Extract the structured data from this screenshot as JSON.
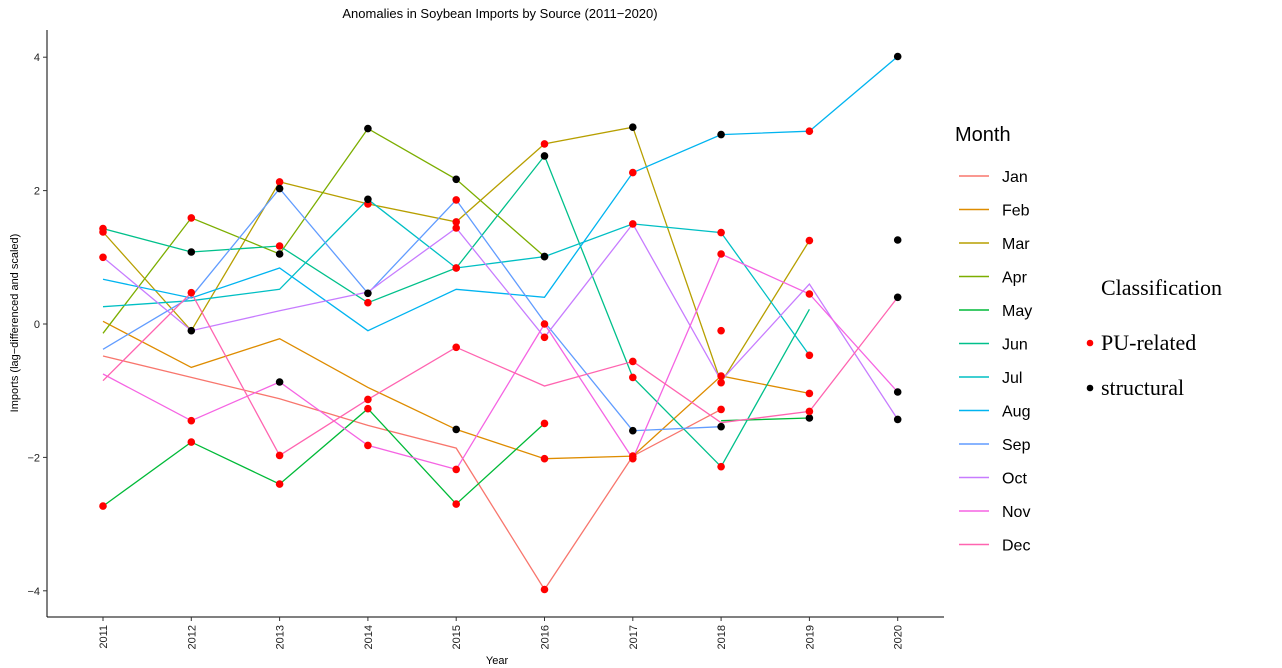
{
  "chart_data": {
    "type": "line",
    "title": "Anomalies in Soybean Imports by Source (2011−2020)",
    "xlabel": "Year",
    "ylabel": "Imports (lag−differenced and scaled)",
    "x": [
      2011,
      2012,
      2013,
      2014,
      2015,
      2016,
      2017,
      2018,
      2019,
      2020
    ],
    "x_tick_labels": [
      "2011",
      "2012",
      "2013",
      "2014",
      "2015",
      "2016",
      "2017",
      "2018",
      "2019",
      "2020"
    ],
    "y_ticks": [
      -4,
      -2,
      0,
      2,
      4
    ],
    "y_tick_labels": [
      "−4",
      "−2",
      "0",
      "2",
      "4"
    ],
    "ylim": [
      -4.4,
      4.2
    ],
    "xlim": [
      2010.4,
      2020.6
    ],
    "grid": false,
    "legend_position": "right",
    "legend_color_title": "Month",
    "legend_class_title": "Classification",
    "classes": [
      {
        "name": "PU-related",
        "color": "#ff0000"
      },
      {
        "name": "structural",
        "color": "#000000"
      }
    ],
    "series": [
      {
        "name": "Jan",
        "color": "#F8766D",
        "values": [
          -0.48,
          -0.8,
          -1.12,
          -1.52,
          -1.86,
          -3.98,
          -1.98,
          -1.28,
          null,
          null
        ],
        "classes": [
          null,
          null,
          null,
          null,
          null,
          "PU-related",
          "PU-related",
          "PU-related",
          null,
          null
        ]
      },
      {
        "name": "Feb",
        "color": "#DE8C00",
        "values": [
          0.04,
          -0.65,
          -0.22,
          -0.95,
          -1.58,
          -2.02,
          -1.98,
          -0.78,
          -1.04,
          null
        ],
        "classes": [
          null,
          null,
          null,
          null,
          "structural",
          "PU-related",
          null,
          "PU-related",
          "PU-related",
          null
        ]
      },
      {
        "name": "Mar",
        "color": "#B79F00",
        "values": [
          1.38,
          -0.1,
          2.13,
          1.8,
          1.53,
          2.7,
          2.95,
          -0.88,
          1.25,
          null
        ],
        "classes": [
          "PU-related",
          "structural",
          "PU-related",
          "PU-related",
          "PU-related",
          "PU-related",
          "structural",
          "PU-related",
          "PU-related",
          null
        ]
      },
      {
        "name": "Apr",
        "color": "#7CAE00",
        "values": [
          -0.14,
          1.59,
          1.05,
          2.93,
          2.17,
          1.01,
          null,
          -0.1,
          null,
          null
        ],
        "classes": [
          null,
          "PU-related",
          "structural",
          "structural",
          "structural",
          "structural",
          null,
          "PU-related",
          null,
          null
        ]
      },
      {
        "name": "May",
        "color": "#00BA38",
        "values": [
          -2.73,
          -1.77,
          -2.4,
          -1.27,
          -2.7,
          -1.49,
          null,
          -1.45,
          -1.41,
          null
        ],
        "classes": [
          "PU-related",
          "PU-related",
          "PU-related",
          "PU-related",
          "PU-related",
          "PU-related",
          null,
          null,
          "structural",
          null
        ]
      },
      {
        "name": "Jun",
        "color": "#00C08B",
        "values": [
          1.43,
          1.08,
          1.17,
          0.32,
          0.84,
          2.52,
          -0.8,
          -2.14,
          0.22,
          null
        ],
        "classes": [
          "PU-related",
          "structural",
          "PU-related",
          "PU-related",
          "PU-related",
          "structural",
          "PU-related",
          "PU-related",
          null,
          null
        ]
      },
      {
        "name": "Jul",
        "color": "#00BFC4",
        "values": [
          0.26,
          0.35,
          0.52,
          1.87,
          0.84,
          1.01,
          1.5,
          1.37,
          -0.47,
          null
        ],
        "classes": [
          null,
          null,
          null,
          "structural",
          "PU-related",
          "structural",
          "PU-related",
          "PU-related",
          "PU-related",
          null
        ]
      },
      {
        "name": "Aug",
        "color": "#00B4F0",
        "values": [
          0.67,
          0.39,
          0.84,
          -0.1,
          0.52,
          0.4,
          2.27,
          2.84,
          2.89,
          4.01
        ],
        "classes": [
          null,
          null,
          null,
          null,
          null,
          null,
          "PU-related",
          "structural",
          "PU-related",
          "structural"
        ]
      },
      {
        "name": "Sep",
        "color": "#619CFF",
        "values": [
          -0.38,
          0.41,
          2.03,
          0.46,
          1.86,
          0.03,
          -1.6,
          -1.54,
          null,
          1.26
        ],
        "classes": [
          null,
          null,
          "structural",
          "structural",
          "PU-related",
          null,
          "structural",
          "structural",
          null,
          "structural"
        ]
      },
      {
        "name": "Oct",
        "color": "#C77CFF",
        "values": [
          1.0,
          -0.1,
          0.2,
          0.48,
          1.44,
          -0.2,
          1.5,
          -0.85,
          0.6,
          -1.43
        ],
        "classes": [
          "PU-related",
          null,
          null,
          null,
          "PU-related",
          "PU-related",
          null,
          null,
          null,
          "structural"
        ]
      },
      {
        "name": "Nov",
        "color": "#F564E3",
        "values": [
          -0.75,
          -1.45,
          -0.87,
          -1.82,
          -2.18,
          0.0,
          -2.02,
          1.05,
          0.45,
          -1.02
        ],
        "classes": [
          null,
          "PU-related",
          "structural",
          "PU-related",
          "PU-related",
          "PU-related",
          "PU-related",
          "PU-related",
          "PU-related",
          "structural"
        ]
      },
      {
        "name": "Dec",
        "color": "#FF64B0",
        "values": [
          -0.85,
          0.47,
          -1.97,
          -1.13,
          -0.35,
          -0.93,
          -0.56,
          -1.48,
          -1.31,
          0.4
        ],
        "classes": [
          null,
          "PU-related",
          "PU-related",
          "PU-related",
          "PU-related",
          null,
          "PU-related",
          null,
          "PU-related",
          "structural"
        ]
      }
    ]
  }
}
